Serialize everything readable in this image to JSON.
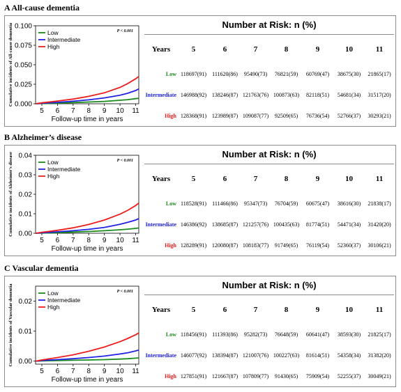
{
  "colors": {
    "low": "#1a8a1a",
    "intermediate": "#1f22e6",
    "high": "#ee1c1c"
  },
  "panels": [
    {
      "title": "A  All-cause dementia",
      "chart": {
        "ylabel": "Cumulative incidents of All-cause dementia",
        "xlabel": "Follow-up time in years",
        "pvalue": "P < 0.001",
        "yticks": [
          "0.000",
          "0.025",
          "0.050",
          "0.075",
          "0.100"
        ],
        "xticks": [
          "5",
          "6",
          "7",
          "8",
          "9",
          "10",
          "11"
        ]
      },
      "legend": [
        "Low",
        "Intermediate",
        "High"
      ],
      "risk": {
        "title": "Number at Risk: n (%)",
        "header": [
          "Years",
          "5",
          "6",
          "7",
          "8",
          "9",
          "10",
          "11"
        ],
        "rows": [
          {
            "name": "Low",
            "values": [
              "118697(91)",
              "111620(86)",
              "95490(73)",
              "76821(59)",
              "60769(47)",
              "38675(30)",
              "21865(17)"
            ]
          },
          {
            "name": "Intermediate",
            "values": [
              "146988(92)",
              "138246(87)",
              "121763(76)",
              "100873(63)",
              "82118(51)",
              "54681(34)",
              "31517(20)"
            ]
          },
          {
            "name": "High",
            "values": [
              "128368(91)",
              "123989(87)",
              "109087(77)",
              "92509(65)",
              "76736(54)",
              "52766(37)",
              "30293(21)"
            ]
          }
        ]
      }
    },
    {
      "title": "B  Alzheimer’s disease",
      "chart": {
        "ylabel": "Cumulative incidents of Alzheimer's disease",
        "xlabel": "Follow-up time in years",
        "pvalue": "P < 0.001",
        "yticks": [
          "0.00",
          "0.01",
          "0.02",
          "0.03",
          "0.04"
        ],
        "xticks": [
          "5",
          "6",
          "7",
          "8",
          "9",
          "10",
          "11"
        ]
      },
      "legend": [
        "Low",
        "Intermediate",
        "High"
      ],
      "risk": {
        "title": "Number at Risk: n (%)",
        "header": [
          "Years",
          "5",
          "6",
          "7",
          "8",
          "9",
          "10",
          "11"
        ],
        "rows": [
          {
            "name": "Low",
            "values": [
              "118528(91)",
              "111466(86)",
              "95347(73)",
              "76704(59)",
              "60675(47)",
              "38616(30)",
              "21838(17)"
            ]
          },
          {
            "name": "Intermediate",
            "values": [
              "146386(92)",
              "138685(87)",
              "121257(76)",
              "100435(63)",
              "81774(51)",
              "54471(34)",
              "31420(20)"
            ]
          },
          {
            "name": "High",
            "values": [
              "128289(91)",
              "120080(87)",
              "108183(77)",
              "91749(65)",
              "76119(54)",
              "52360(37)",
              "30106(21)"
            ]
          }
        ]
      }
    },
    {
      "title": "C  Vascular dementia",
      "chart": {
        "ylabel": "Cumulative incidents of Vascular dementia",
        "xlabel": "Follow-up time in years",
        "pvalue": "P < 0.001",
        "yticks": [
          "0.00",
          "0.01",
          "0.02"
        ],
        "xticks": [
          "5",
          "6",
          "7",
          "8",
          "9",
          "10",
          "11"
        ]
      },
      "legend": [
        "Low",
        "Intermediate",
        "High"
      ],
      "risk": {
        "title": "Number at Risk: n (%)",
        "header": [
          "Years",
          "5",
          "6",
          "7",
          "8",
          "9",
          "10",
          "11"
        ],
        "rows": [
          {
            "name": "Low",
            "values": [
              "118456(91)",
              "111393(86)",
              "95282(73)",
              "76648(59)",
              "60641(47)",
              "38593(30)",
              "21825(17)"
            ]
          },
          {
            "name": "Intermediate",
            "values": [
              "146077(92)",
              "138394(87)",
              "121007(76)",
              "100227(63)",
              "81614(51)",
              "54358(34)",
              "31382(20)"
            ]
          },
          {
            "name": "High",
            "values": [
              "127851(91)",
              "121667(87)",
              "107809(77)",
              "91430(65)",
              "75909(54)",
              "52255(37)",
              "30049(21)"
            ]
          }
        ]
      }
    }
  ],
  "chart_data": [
    {
      "type": "line",
      "title": "All-cause dementia",
      "xlabel": "Follow-up time in years",
      "ylabel": "Cumulative incidents of All-cause dementia",
      "xlim": [
        4.6,
        11.2
      ],
      "ylim": [
        0,
        0.1
      ],
      "x": [
        4.6,
        5,
        6,
        7,
        8,
        9,
        10,
        10.5,
        11,
        11.2
      ],
      "series": [
        {
          "name": "Low",
          "values": [
            0,
            0.0003,
            0.0008,
            0.0015,
            0.0022,
            0.003,
            0.0045,
            0.0053,
            0.0065,
            0.007
          ]
        },
        {
          "name": "Intermediate",
          "values": [
            0,
            0.0006,
            0.0018,
            0.0032,
            0.005,
            0.0075,
            0.011,
            0.0135,
            0.017,
            0.019
          ]
        },
        {
          "name": "High",
          "values": [
            0,
            0.0012,
            0.0035,
            0.006,
            0.0095,
            0.014,
            0.021,
            0.026,
            0.032,
            0.035
          ]
        }
      ],
      "annotations": [
        "P < 0.001"
      ]
    },
    {
      "type": "line",
      "title": "Alzheimer’s disease",
      "xlabel": "Follow-up time in years",
      "ylabel": "Cumulative incidents of Alzheimer's disease",
      "xlim": [
        4.6,
        11.2
      ],
      "ylim": [
        0,
        0.04
      ],
      "x": [
        4.6,
        5,
        6,
        7,
        8,
        9,
        10,
        10.5,
        11,
        11.2
      ],
      "series": [
        {
          "name": "Low",
          "values": [
            0,
            0.0001,
            0.0003,
            0.0006,
            0.0009,
            0.0013,
            0.0018,
            0.0021,
            0.0025,
            0.0027
          ]
        },
        {
          "name": "Intermediate",
          "values": [
            0,
            0.0002,
            0.0007,
            0.0013,
            0.002,
            0.003,
            0.0046,
            0.0056,
            0.0068,
            0.0075
          ]
        },
        {
          "name": "High",
          "values": [
            0,
            0.0005,
            0.0015,
            0.0028,
            0.0045,
            0.0068,
            0.0098,
            0.0118,
            0.0142,
            0.0155
          ]
        }
      ],
      "annotations": [
        "P < 0.001"
      ]
    },
    {
      "type": "line",
      "title": "Vascular dementia",
      "xlabel": "Follow-up time in years",
      "ylabel": "Cumulative incidents of Vascular dementia",
      "xlim": [
        4.6,
        11.2
      ],
      "ylim": [
        -0.001,
        0.025
      ],
      "x": [
        4.6,
        5,
        6,
        7,
        8,
        9,
        10,
        10.5,
        11,
        11.2
      ],
      "series": [
        {
          "name": "Low",
          "values": [
            0,
            0.0001,
            0.0002,
            0.0003,
            0.0004,
            0.0005,
            0.0007,
            0.0008,
            0.001,
            0.0011
          ]
        },
        {
          "name": "Intermediate",
          "values": [
            0,
            0.0002,
            0.0005,
            0.0008,
            0.0012,
            0.0017,
            0.0024,
            0.0028,
            0.0034,
            0.0037
          ]
        },
        {
          "name": "High",
          "values": [
            0,
            0.0004,
            0.0012,
            0.0021,
            0.0033,
            0.0047,
            0.0065,
            0.0076,
            0.0088,
            0.0094
          ]
        }
      ],
      "annotations": [
        "P < 0.001"
      ]
    }
  ]
}
